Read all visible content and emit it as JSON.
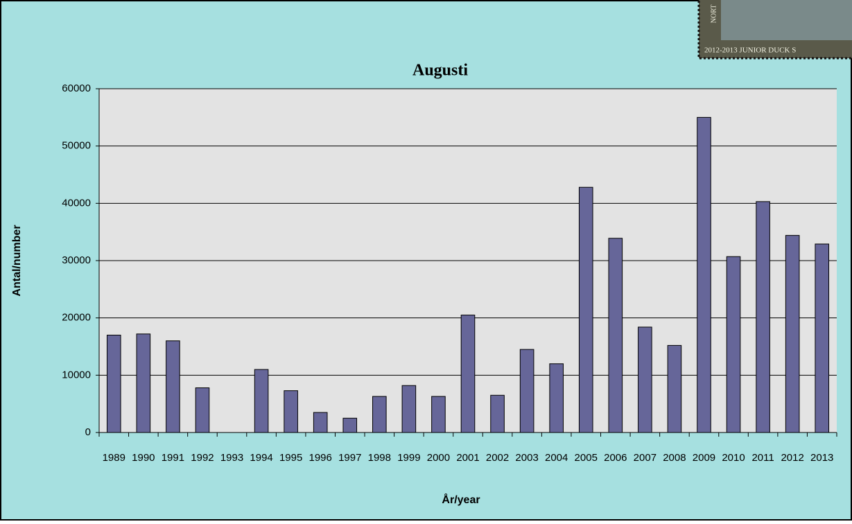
{
  "chart_data": {
    "type": "bar",
    "title": "Augusti",
    "x_label": "År/year",
    "y_label": "Antal/number",
    "categories": [
      "1989",
      "1990",
      "1991",
      "1992",
      "1993",
      "1994",
      "1995",
      "1996",
      "1997",
      "1998",
      "1999",
      "2000",
      "2001",
      "2002",
      "2003",
      "2004",
      "2005",
      "2006",
      "2007",
      "2008",
      "2009",
      "2010",
      "2011",
      "2012",
      "2013"
    ],
    "values": [
      17000,
      17200,
      16000,
      7800,
      null,
      11000,
      7300,
      3500,
      2500,
      6300,
      8200,
      6300,
      20500,
      6500,
      14500,
      12000,
      42800,
      33900,
      18400,
      15200,
      55000,
      30700,
      40300,
      34400,
      32900
    ],
    "color": "#666699",
    "ylim": [
      0,
      60000
    ],
    "yticks": [
      0,
      10000,
      20000,
      30000,
      40000,
      50000,
      60000
    ],
    "grid": true,
    "stamp_caption": "2012-2013 JUNIOR DUCK S",
    "stamp_side_text": "NORT"
  }
}
